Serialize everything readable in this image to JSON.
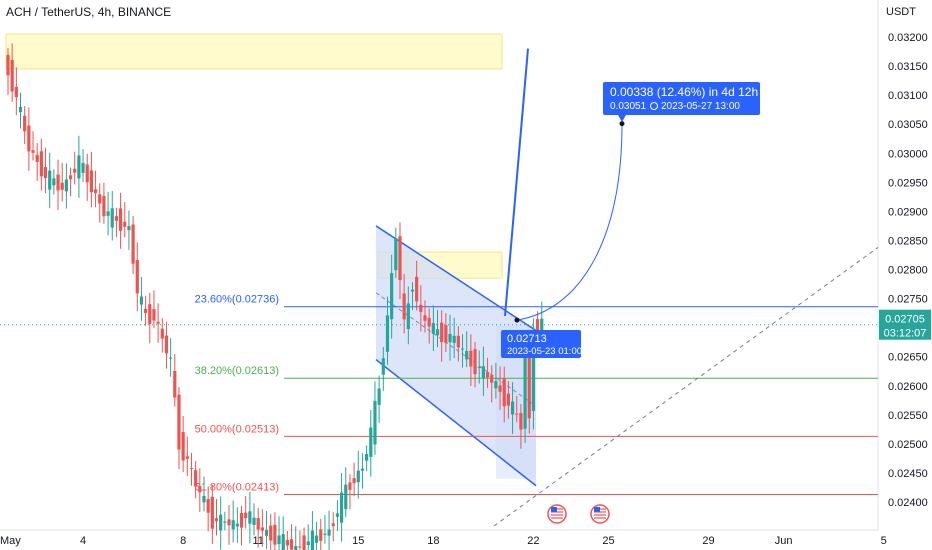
{
  "header": {
    "title": "ACH / TetherUS, 4h, BINANCE",
    "unit": "USDT"
  },
  "colors": {
    "up": "#26a69a",
    "down": "#ef5350",
    "accent": "#2962ff",
    "fill": "#d1dcf8",
    "zone": "#fffbcc"
  },
  "chart_data": {
    "type": "candlestick",
    "ylim": [
      0.0237,
      0.0323
    ],
    "xlim_bars": [
      0,
      190
    ],
    "y_ticks": [
      "0.02400",
      "0.02450",
      "0.02500",
      "0.02550",
      "0.02600",
      "0.02650",
      "0.02700",
      "0.02750",
      "0.02800",
      "0.02850",
      "0.02900",
      "0.02950",
      "0.03000",
      "0.03050",
      "0.03100",
      "0.03150",
      "0.03200"
    ],
    "x_ticks": [
      {
        "label": "May",
        "bar": 0
      },
      {
        "label": "4",
        "bar": 18
      },
      {
        "label": "8",
        "bar": 42
      },
      {
        "label": "11",
        "bar": 60
      },
      {
        "label": "15",
        "bar": 84
      },
      {
        "label": "18",
        "bar": 102
      },
      {
        "label": "22",
        "bar": 126
      },
      {
        "label": "25",
        "bar": 144
      },
      {
        "label": "29",
        "bar": 168
      },
      {
        "label": "Jun",
        "bar": 186
      },
      {
        "label": "5",
        "bar": 210
      }
    ],
    "bar_spacing_px": 4.17,
    "current_price": {
      "price": "0.02705",
      "countdown": "03:12:07",
      "value": 0.02705
    },
    "fib_levels": [
      {
        "label": "23.60%(0.02736)",
        "value": 0.02736,
        "color": "#2962ff"
      },
      {
        "label": "38.20%(0.02613)",
        "value": 0.02613,
        "color": "#4caf50"
      },
      {
        "label": "50.00%(0.02513)",
        "value": 0.02513,
        "color": "#ef5350"
      },
      {
        "label": "61.80%(0.02413)",
        "value": 0.02413,
        "color": "#ef5350"
      }
    ],
    "projection_label": {
      "line1": "0.00338 (12.46%) in 4d 12h",
      "line2": "0.03051",
      "line2_time": "2023-05-27  13:00"
    },
    "start_label": {
      "price": "0.02713",
      "time": "2023-05-23 01:00"
    },
    "events": [
      "us-flag-icon",
      "us-flag-icon"
    ]
  }
}
